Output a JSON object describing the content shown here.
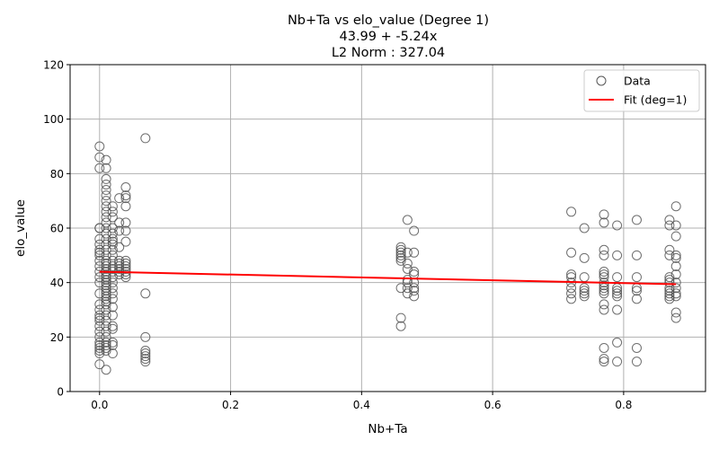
{
  "chart_data": {
    "type": "scatter",
    "title_lines": [
      "Nb+Ta vs elo_value (Degree 1)",
      "43.99 + -5.24x",
      "L2 Norm : 327.04"
    ],
    "xlabel": "Nb+Ta",
    "ylabel": "elo_value",
    "xlim": [
      -0.045,
      0.925
    ],
    "ylim": [
      0,
      120
    ],
    "xticks": [
      0.0,
      0.2,
      0.4,
      0.6,
      0.8
    ],
    "xtick_labels": [
      "0.0",
      "0.2",
      "0.4",
      "0.6",
      "0.8"
    ],
    "yticks": [
      0,
      20,
      40,
      60,
      80,
      100,
      120
    ],
    "ytick_labels": [
      "0",
      "20",
      "40",
      "60",
      "80",
      "100",
      "120"
    ],
    "grid": true,
    "legend": {
      "position": "top-right",
      "entries": [
        "Data",
        "Fit (deg=1)"
      ]
    },
    "fit": {
      "intercept": 43.99,
      "slope": -5.24,
      "x_range": [
        0.0,
        0.88
      ],
      "color": "#ff0000"
    },
    "marker_color": "#555555",
    "series": [
      {
        "name": "Data",
        "points": [
          [
            0.0,
            90
          ],
          [
            0.0,
            86
          ],
          [
            0.0,
            82
          ],
          [
            0.0,
            60
          ],
          [
            0.0,
            60
          ],
          [
            0.0,
            56
          ],
          [
            0.0,
            54
          ],
          [
            0.0,
            52
          ],
          [
            0.0,
            51
          ],
          [
            0.0,
            50
          ],
          [
            0.0,
            48
          ],
          [
            0.0,
            46
          ],
          [
            0.0,
            44
          ],
          [
            0.0,
            42
          ],
          [
            0.0,
            40
          ],
          [
            0.0,
            36
          ],
          [
            0.0,
            32
          ],
          [
            0.0,
            30
          ],
          [
            0.0,
            28
          ],
          [
            0.0,
            27
          ],
          [
            0.0,
            26
          ],
          [
            0.0,
            24
          ],
          [
            0.0,
            22
          ],
          [
            0.0,
            20
          ],
          [
            0.0,
            18
          ],
          [
            0.0,
            17
          ],
          [
            0.0,
            16
          ],
          [
            0.0,
            15
          ],
          [
            0.0,
            14
          ],
          [
            0.0,
            10
          ],
          [
            0.01,
            85
          ],
          [
            0.01,
            82
          ],
          [
            0.01,
            78
          ],
          [
            0.01,
            76
          ],
          [
            0.01,
            74
          ],
          [
            0.01,
            72
          ],
          [
            0.01,
            70
          ],
          [
            0.01,
            68
          ],
          [
            0.01,
            66
          ],
          [
            0.01,
            64
          ],
          [
            0.01,
            62
          ],
          [
            0.01,
            60
          ],
          [
            0.01,
            58
          ],
          [
            0.01,
            56
          ],
          [
            0.01,
            54
          ],
          [
            0.01,
            52
          ],
          [
            0.01,
            50
          ],
          [
            0.01,
            48
          ],
          [
            0.01,
            47
          ],
          [
            0.01,
            46
          ],
          [
            0.01,
            45
          ],
          [
            0.01,
            44
          ],
          [
            0.01,
            43
          ],
          [
            0.01,
            42
          ],
          [
            0.01,
            41
          ],
          [
            0.01,
            40
          ],
          [
            0.01,
            39
          ],
          [
            0.01,
            38
          ],
          [
            0.01,
            37
          ],
          [
            0.01,
            36
          ],
          [
            0.01,
            35
          ],
          [
            0.01,
            34
          ],
          [
            0.01,
            33
          ],
          [
            0.01,
            32
          ],
          [
            0.01,
            30
          ],
          [
            0.01,
            28
          ],
          [
            0.01,
            26
          ],
          [
            0.01,
            24
          ],
          [
            0.01,
            22
          ],
          [
            0.01,
            20
          ],
          [
            0.01,
            18
          ],
          [
            0.01,
            17
          ],
          [
            0.01,
            16
          ],
          [
            0.01,
            15
          ],
          [
            0.01,
            8
          ],
          [
            0.02,
            68
          ],
          [
            0.02,
            66
          ],
          [
            0.02,
            64
          ],
          [
            0.02,
            60
          ],
          [
            0.02,
            58
          ],
          [
            0.02,
            56
          ],
          [
            0.02,
            55
          ],
          [
            0.02,
            54
          ],
          [
            0.02,
            52
          ],
          [
            0.02,
            50
          ],
          [
            0.02,
            48
          ],
          [
            0.02,
            46
          ],
          [
            0.02,
            45
          ],
          [
            0.02,
            44
          ],
          [
            0.02,
            42
          ],
          [
            0.02,
            40
          ],
          [
            0.02,
            38
          ],
          [
            0.02,
            36
          ],
          [
            0.02,
            34
          ],
          [
            0.02,
            31
          ],
          [
            0.02,
            28
          ],
          [
            0.02,
            24
          ],
          [
            0.02,
            23
          ],
          [
            0.02,
            18
          ],
          [
            0.02,
            17
          ],
          [
            0.02,
            14
          ],
          [
            0.03,
            71
          ],
          [
            0.03,
            62
          ],
          [
            0.03,
            59
          ],
          [
            0.03,
            53
          ],
          [
            0.03,
            48
          ],
          [
            0.03,
            47
          ],
          [
            0.03,
            46
          ],
          [
            0.03,
            45
          ],
          [
            0.03,
            44
          ],
          [
            0.03,
            43
          ],
          [
            0.04,
            75
          ],
          [
            0.04,
            72
          ],
          [
            0.04,
            71
          ],
          [
            0.04,
            68
          ],
          [
            0.04,
            62
          ],
          [
            0.04,
            59
          ],
          [
            0.04,
            55
          ],
          [
            0.04,
            48
          ],
          [
            0.04,
            47
          ],
          [
            0.04,
            46
          ],
          [
            0.04,
            45
          ],
          [
            0.04,
            44
          ],
          [
            0.04,
            43
          ],
          [
            0.04,
            42
          ],
          [
            0.07,
            93
          ],
          [
            0.07,
            36
          ],
          [
            0.07,
            20
          ],
          [
            0.07,
            15
          ],
          [
            0.07,
            14
          ],
          [
            0.07,
            13
          ],
          [
            0.07,
            12
          ],
          [
            0.07,
            11
          ],
          [
            0.46,
            53
          ],
          [
            0.46,
            52
          ],
          [
            0.46,
            51
          ],
          [
            0.46,
            50
          ],
          [
            0.46,
            49
          ],
          [
            0.46,
            48
          ],
          [
            0.46,
            38
          ],
          [
            0.46,
            27
          ],
          [
            0.46,
            24
          ],
          [
            0.47,
            63
          ],
          [
            0.47,
            51
          ],
          [
            0.47,
            47
          ],
          [
            0.47,
            45
          ],
          [
            0.47,
            41
          ],
          [
            0.47,
            40
          ],
          [
            0.47,
            38
          ],
          [
            0.47,
            36
          ],
          [
            0.48,
            59
          ],
          [
            0.48,
            51
          ],
          [
            0.48,
            44
          ],
          [
            0.48,
            43
          ],
          [
            0.48,
            40
          ],
          [
            0.48,
            38
          ],
          [
            0.48,
            37
          ],
          [
            0.48,
            35
          ],
          [
            0.72,
            66
          ],
          [
            0.72,
            51
          ],
          [
            0.72,
            43
          ],
          [
            0.72,
            42
          ],
          [
            0.72,
            40
          ],
          [
            0.72,
            38
          ],
          [
            0.72,
            36
          ],
          [
            0.72,
            34
          ],
          [
            0.74,
            60
          ],
          [
            0.74,
            49
          ],
          [
            0.74,
            42
          ],
          [
            0.74,
            38
          ],
          [
            0.74,
            37
          ],
          [
            0.74,
            36
          ],
          [
            0.74,
            35
          ],
          [
            0.77,
            65
          ],
          [
            0.77,
            62
          ],
          [
            0.77,
            52
          ],
          [
            0.77,
            50
          ],
          [
            0.77,
            44
          ],
          [
            0.77,
            43
          ],
          [
            0.77,
            42
          ],
          [
            0.77,
            40
          ],
          [
            0.77,
            39
          ],
          [
            0.77,
            38
          ],
          [
            0.77,
            37
          ],
          [
            0.77,
            36
          ],
          [
            0.77,
            32
          ],
          [
            0.77,
            30
          ],
          [
            0.77,
            16
          ],
          [
            0.77,
            12
          ],
          [
            0.77,
            11
          ],
          [
            0.79,
            61
          ],
          [
            0.79,
            50
          ],
          [
            0.79,
            42
          ],
          [
            0.79,
            38
          ],
          [
            0.79,
            37
          ],
          [
            0.79,
            36
          ],
          [
            0.79,
            35
          ],
          [
            0.79,
            30
          ],
          [
            0.79,
            18
          ],
          [
            0.79,
            11
          ],
          [
            0.82,
            63
          ],
          [
            0.82,
            50
          ],
          [
            0.82,
            42
          ],
          [
            0.82,
            38
          ],
          [
            0.82,
            37
          ],
          [
            0.82,
            34
          ],
          [
            0.82,
            16
          ],
          [
            0.82,
            11
          ],
          [
            0.87,
            63
          ],
          [
            0.87,
            61
          ],
          [
            0.87,
            52
          ],
          [
            0.87,
            50
          ],
          [
            0.87,
            42
          ],
          [
            0.87,
            41
          ],
          [
            0.87,
            40
          ],
          [
            0.87,
            38
          ],
          [
            0.87,
            37
          ],
          [
            0.87,
            36
          ],
          [
            0.87,
            35
          ],
          [
            0.87,
            34
          ],
          [
            0.88,
            68
          ],
          [
            0.88,
            61
          ],
          [
            0.88,
            57
          ],
          [
            0.88,
            50
          ],
          [
            0.88,
            49
          ],
          [
            0.88,
            46
          ],
          [
            0.88,
            43
          ],
          [
            0.88,
            40
          ],
          [
            0.88,
            38
          ],
          [
            0.88,
            36
          ],
          [
            0.88,
            35
          ],
          [
            0.88,
            29
          ],
          [
            0.88,
            27
          ]
        ]
      }
    ]
  }
}
